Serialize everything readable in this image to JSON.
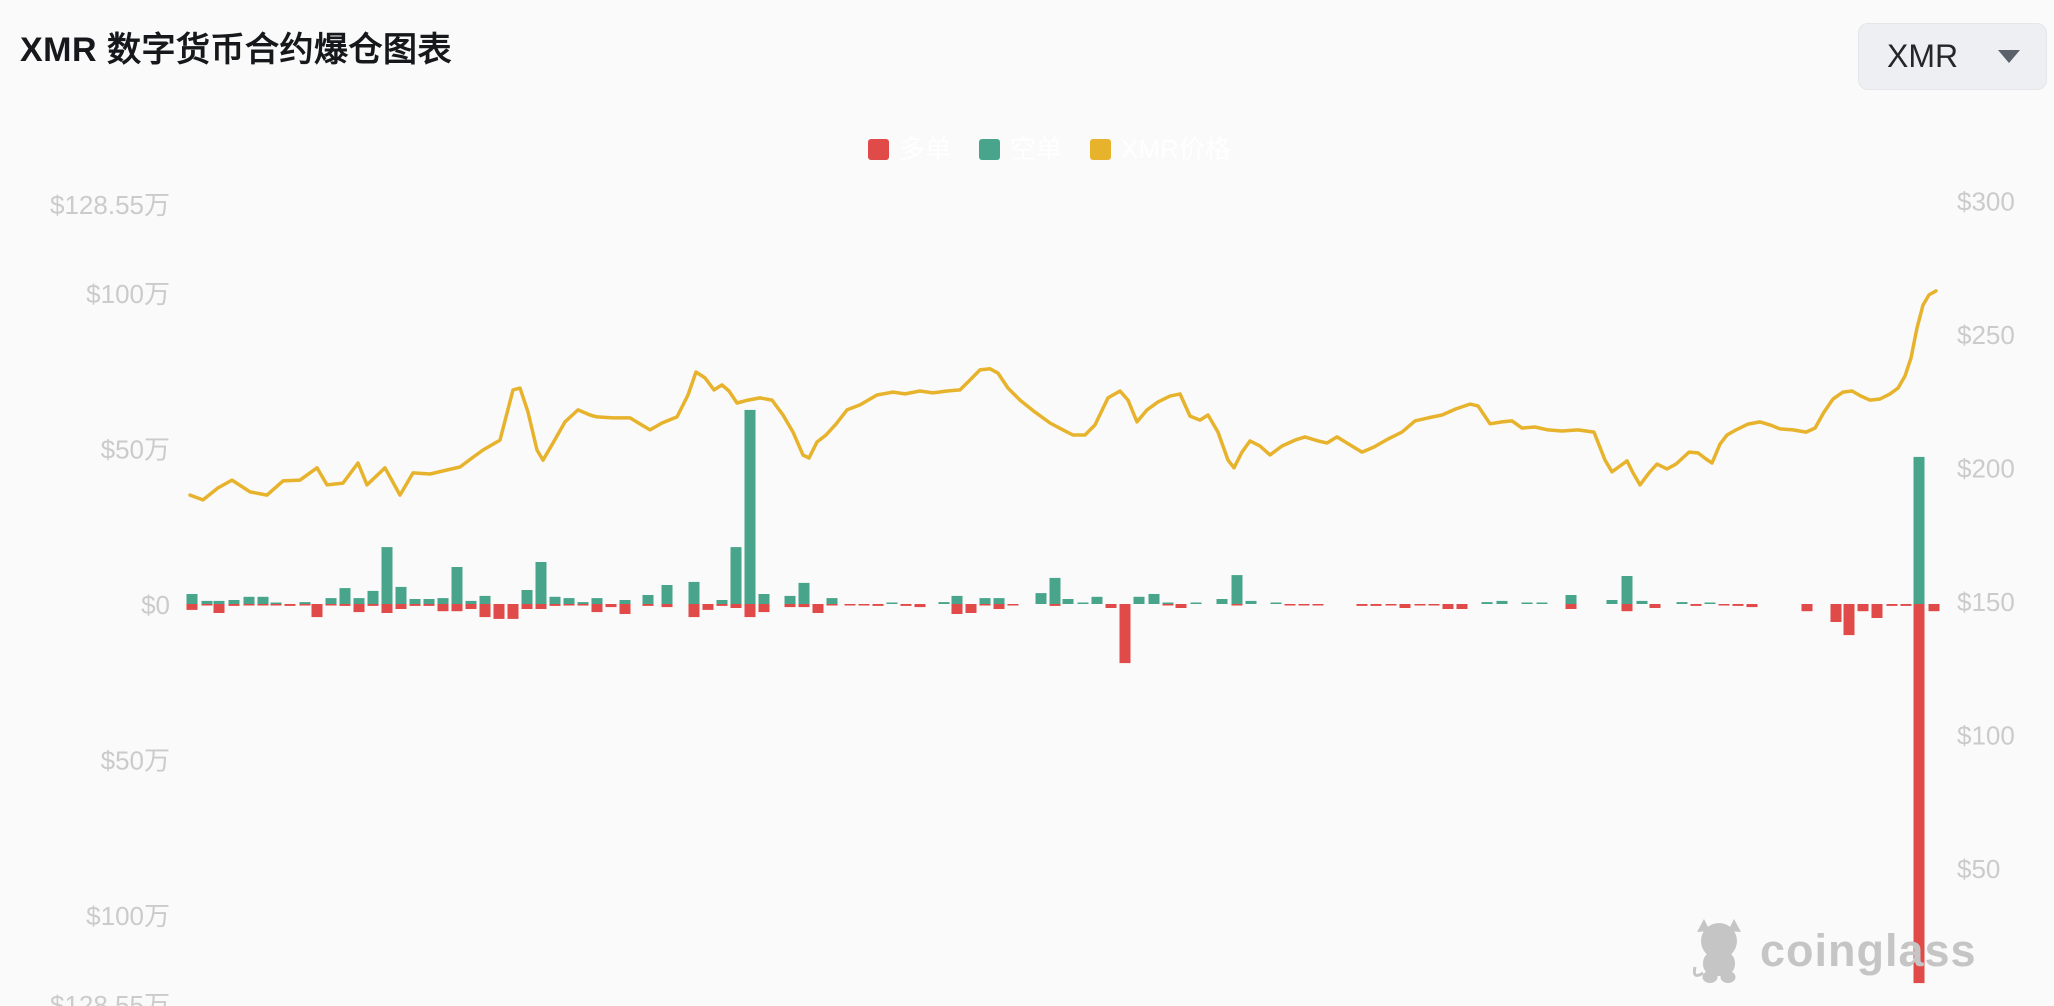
{
  "header": {
    "title": "XMR 数字货币合约爆仓图表",
    "coin_selector": {
      "value": "XMR"
    }
  },
  "legend": {
    "items": [
      {
        "label": "多单",
        "color": "#e04a48",
        "text_color": "#ffffff"
      },
      {
        "label": "空单",
        "color": "#48a58c",
        "text_color": "#ffffff"
      },
      {
        "label": "XMR价格",
        "color": "#e8b32c",
        "text_color": "#ffffff"
      }
    ]
  },
  "watermark": {
    "text": "coinglass"
  },
  "colors": {
    "background": "#fafafa",
    "long_bar": "#e04a48",
    "short_bar": "#48a58c",
    "price_line": "#e8b32c",
    "axis_label": "#cbcbcb",
    "title": "#17181b"
  },
  "chart_data": {
    "type": "bar-line-combo",
    "title": "XMR 数字货币合约爆仓图表",
    "legend_position": "top-center",
    "grid": false,
    "series_meta": [
      {
        "name": "多单",
        "type": "bar",
        "side": "below-zero",
        "unit": "万 USD",
        "color": "#e04a48"
      },
      {
        "name": "空单",
        "type": "bar",
        "side": "above-zero",
        "unit": "万 USD",
        "color": "#48a58c"
      },
      {
        "name": "XMR价格",
        "type": "line",
        "axis": "right",
        "unit": "USD",
        "color": "#e8b32c"
      }
    ],
    "left_axis": {
      "unit": "万 (10k USD)",
      "range_wan": [
        -128.55,
        128.55
      ],
      "ticks": [
        {
          "label": "$128.55万",
          "value": 128.55
        },
        {
          "label": "$100万",
          "value": 100
        },
        {
          "label": "$50万",
          "value": 50
        },
        {
          "label": "$0",
          "value": 0
        },
        {
          "label": "$50万",
          "value": -50
        },
        {
          "label": "$100万",
          "value": -100
        },
        {
          "label": "$128.55万",
          "value": -128.55
        }
      ]
    },
    "right_axis": {
      "unit": "USD",
      "range": [
        50,
        300
      ],
      "ticks": [
        {
          "label": "$300",
          "value": 300
        },
        {
          "label": "$250",
          "value": 250
        },
        {
          "label": "$200",
          "value": 200
        },
        {
          "label": "$150",
          "value": 150
        },
        {
          "label": "$100",
          "value": 100
        },
        {
          "label": "$50",
          "value": 50
        }
      ]
    },
    "bars_note": "each item = [x_px, long_liquidation_wan(red,below), short_liquidation_wan(green,above)]",
    "bars": [
      [
        192,
        1.9,
        3.2
      ],
      [
        207,
        0.3,
        1.0
      ],
      [
        219,
        2.9,
        1.0
      ],
      [
        234,
        0.6,
        1.3
      ],
      [
        249,
        0.3,
        2.3
      ],
      [
        263,
        0.3,
        2.3
      ],
      [
        276,
        0.3,
        0.3
      ],
      [
        290,
        0.6,
        0
      ],
      [
        305,
        0.3,
        0.6
      ],
      [
        317,
        4.2,
        0
      ],
      [
        331,
        0.3,
        1.9
      ],
      [
        345,
        0.6,
        5.1
      ],
      [
        359,
        2.6,
        1.9
      ],
      [
        373,
        0.6,
        4.2
      ],
      [
        387,
        2.9,
        18.3
      ],
      [
        401,
        1.6,
        5.5
      ],
      [
        415,
        0.6,
        1.6
      ],
      [
        429,
        0.6,
        1.6
      ],
      [
        443,
        2.3,
        1.9
      ],
      [
        457,
        2.3,
        11.9
      ],
      [
        471,
        1.6,
        1.0
      ],
      [
        485,
        4.2,
        2.6
      ],
      [
        499,
        4.8,
        0
      ],
      [
        513,
        4.8,
        0
      ],
      [
        527,
        1.6,
        4.5
      ],
      [
        541,
        1.6,
        13.5
      ],
      [
        555,
        0.6,
        2.3
      ],
      [
        569,
        0.3,
        1.9
      ],
      [
        583,
        0.3,
        0.6
      ],
      [
        597,
        2.6,
        1.9
      ],
      [
        611,
        1.0,
        0
      ],
      [
        625,
        3.2,
        1.3
      ],
      [
        648,
        0.6,
        2.9
      ],
      [
        667,
        1.0,
        6.1
      ],
      [
        694,
        4.2,
        7.1
      ],
      [
        708,
        1.9,
        0
      ],
      [
        722,
        0.6,
        1.3
      ],
      [
        736,
        1.3,
        18.3
      ],
      [
        750,
        4.2,
        62.4
      ],
      [
        764,
        2.6,
        3.2
      ],
      [
        790,
        1.0,
        2.6
      ],
      [
        804,
        1.0,
        6.8
      ],
      [
        818,
        2.9,
        0
      ],
      [
        832,
        0.3,
        1.9
      ],
      [
        850,
        0.3,
        0
      ],
      [
        864,
        0.3,
        0
      ],
      [
        878,
        0.6,
        0
      ],
      [
        892,
        0,
        0.3
      ],
      [
        906,
        0.6,
        0
      ],
      [
        920,
        1.0,
        0
      ],
      [
        944,
        0,
        0.6
      ],
      [
        957,
        3.2,
        2.6
      ],
      [
        971,
        2.9,
        0
      ],
      [
        985,
        0.3,
        1.9
      ],
      [
        999,
        1.6,
        1.9
      ],
      [
        1013,
        0.3,
        0
      ],
      [
        1041,
        0,
        3.5
      ],
      [
        1055,
        0.6,
        8.4
      ],
      [
        1068,
        0,
        1.6
      ],
      [
        1083,
        0,
        0.3
      ],
      [
        1097,
        0,
        2.3
      ],
      [
        1111,
        1.3,
        0
      ],
      [
        1125,
        19.0,
        0
      ],
      [
        1139,
        0,
        2.3
      ],
      [
        1154,
        0,
        3.2
      ],
      [
        1168,
        0.3,
        0.3
      ],
      [
        1181,
        1.3,
        0
      ],
      [
        1196,
        0,
        0.3
      ],
      [
        1222,
        0,
        1.6
      ],
      [
        1237,
        0.3,
        9.3
      ],
      [
        1251,
        0,
        1.0
      ],
      [
        1276,
        0,
        0.3
      ],
      [
        1290,
        0.3,
        0
      ],
      [
        1304,
        0.3,
        0
      ],
      [
        1318,
        0.3,
        0
      ],
      [
        1362,
        0.6,
        0
      ],
      [
        1376,
        0.6,
        0
      ],
      [
        1391,
        0.3,
        0
      ],
      [
        1405,
        1.3,
        0
      ],
      [
        1420,
        0.3,
        0
      ],
      [
        1434,
        0.3,
        0
      ],
      [
        1448,
        1.6,
        0
      ],
      [
        1462,
        1.6,
        0
      ],
      [
        1487,
        0,
        0.6
      ],
      [
        1502,
        0,
        1.0
      ],
      [
        1527,
        0,
        0.3
      ],
      [
        1542,
        0,
        0.3
      ],
      [
        1571,
        1.6,
        2.9
      ],
      [
        1612,
        0,
        1.3
      ],
      [
        1627,
        2.3,
        9.0
      ],
      [
        1642,
        0,
        1.0
      ],
      [
        1655,
        1.3,
        0
      ],
      [
        1682,
        0,
        0.6
      ],
      [
        1696,
        0.6,
        0
      ],
      [
        1710,
        0,
        0.3
      ],
      [
        1724,
        0.3,
        0
      ],
      [
        1738,
        0.6,
        0
      ],
      [
        1752,
        1.0,
        0
      ],
      [
        1807,
        2.3,
        0
      ],
      [
        1836,
        5.8,
        0
      ],
      [
        1849,
        10.0,
        0
      ],
      [
        1863,
        2.3,
        0
      ],
      [
        1877,
        4.5,
        0
      ],
      [
        1892,
        0.6,
        0
      ],
      [
        1906,
        0.6,
        0
      ],
      [
        1919,
        121.9,
        47.3
      ],
      [
        1934,
        2.3,
        0
      ]
    ],
    "price_line_note": "each item = [x_px, price_usd]",
    "price_line": [
      [
        190,
        189.7
      ],
      [
        203,
        187.9
      ],
      [
        218,
        192.4
      ],
      [
        232,
        195.3
      ],
      [
        250,
        190.9
      ],
      [
        267,
        189.7
      ],
      [
        283,
        195.0
      ],
      [
        300,
        195.3
      ],
      [
        317,
        199.9
      ],
      [
        327,
        193.5
      ],
      [
        343,
        194.2
      ],
      [
        358,
        201.7
      ],
      [
        367,
        193.5
      ],
      [
        385,
        199.9
      ],
      [
        400,
        189.7
      ],
      [
        413,
        198.0
      ],
      [
        430,
        197.6
      ],
      [
        447,
        199.1
      ],
      [
        460,
        200.2
      ],
      [
        472,
        203.6
      ],
      [
        483,
        206.6
      ],
      [
        500,
        210.3
      ],
      [
        513,
        229.1
      ],
      [
        520,
        229.8
      ],
      [
        528,
        220.8
      ],
      [
        537,
        206.6
      ],
      [
        543,
        202.8
      ],
      [
        553,
        209.2
      ],
      [
        565,
        217.1
      ],
      [
        578,
        221.6
      ],
      [
        590,
        219.7
      ],
      [
        597,
        219.0
      ],
      [
        613,
        218.6
      ],
      [
        630,
        218.6
      ],
      [
        650,
        214.1
      ],
      [
        662,
        216.7
      ],
      [
        677,
        219.0
      ],
      [
        688,
        227.2
      ],
      [
        696,
        235.8
      ],
      [
        705,
        233.6
      ],
      [
        714,
        229.1
      ],
      [
        722,
        231.0
      ],
      [
        729,
        228.7
      ],
      [
        737,
        224.2
      ],
      [
        748,
        225.3
      ],
      [
        760,
        226.1
      ],
      [
        772,
        225.3
      ],
      [
        783,
        219.7
      ],
      [
        793,
        213.3
      ],
      [
        803,
        204.7
      ],
      [
        809,
        203.6
      ],
      [
        817,
        209.6
      ],
      [
        826,
        212.2
      ],
      [
        836,
        216.3
      ],
      [
        847,
        221.6
      ],
      [
        860,
        223.5
      ],
      [
        877,
        227.2
      ],
      [
        893,
        228.3
      ],
      [
        905,
        227.6
      ],
      [
        920,
        228.7
      ],
      [
        933,
        228.0
      ],
      [
        947,
        228.7
      ],
      [
        960,
        229.1
      ],
      [
        970,
        232.8
      ],
      [
        980,
        236.6
      ],
      [
        990,
        237.0
      ],
      [
        998,
        235.4
      ],
      [
        1008,
        229.8
      ],
      [
        1020,
        225.3
      ],
      [
        1035,
        220.8
      ],
      [
        1050,
        216.7
      ],
      [
        1063,
        214.1
      ],
      [
        1073,
        212.2
      ],
      [
        1085,
        212.2
      ],
      [
        1095,
        216.0
      ],
      [
        1108,
        226.1
      ],
      [
        1120,
        228.7
      ],
      [
        1128,
        225.3
      ],
      [
        1137,
        217.1
      ],
      [
        1147,
        221.6
      ],
      [
        1158,
        224.6
      ],
      [
        1170,
        226.8
      ],
      [
        1180,
        227.6
      ],
      [
        1190,
        219.3
      ],
      [
        1200,
        217.8
      ],
      [
        1208,
        219.7
      ],
      [
        1218,
        213.3
      ],
      [
        1228,
        202.8
      ],
      [
        1234,
        199.9
      ],
      [
        1242,
        205.8
      ],
      [
        1250,
        210.0
      ],
      [
        1260,
        208.1
      ],
      [
        1270,
        204.7
      ],
      [
        1282,
        208.1
      ],
      [
        1295,
        210.3
      ],
      [
        1305,
        211.5
      ],
      [
        1318,
        210.0
      ],
      [
        1327,
        209.2
      ],
      [
        1337,
        211.5
      ],
      [
        1350,
        208.5
      ],
      [
        1362,
        205.8
      ],
      [
        1374,
        207.7
      ],
      [
        1388,
        210.7
      ],
      [
        1402,
        213.3
      ],
      [
        1415,
        217.5
      ],
      [
        1428,
        218.6
      ],
      [
        1442,
        219.7
      ],
      [
        1456,
        222.0
      ],
      [
        1470,
        223.8
      ],
      [
        1478,
        223.1
      ],
      [
        1490,
        216.4
      ],
      [
        1502,
        217.1
      ],
      [
        1512,
        217.5
      ],
      [
        1522,
        214.8
      ],
      [
        1535,
        215.2
      ],
      [
        1548,
        214.1
      ],
      [
        1562,
        213.7
      ],
      [
        1578,
        214.1
      ],
      [
        1594,
        213.3
      ],
      [
        1605,
        202.8
      ],
      [
        1612,
        198.4
      ],
      [
        1620,
        200.6
      ],
      [
        1627,
        202.5
      ],
      [
        1633,
        198.0
      ],
      [
        1640,
        193.5
      ],
      [
        1649,
        198.0
      ],
      [
        1657,
        201.3
      ],
      [
        1667,
        199.5
      ],
      [
        1676,
        201.3
      ],
      [
        1689,
        205.8
      ],
      [
        1698,
        205.5
      ],
      [
        1706,
        203.2
      ],
      [
        1712,
        201.7
      ],
      [
        1720,
        208.8
      ],
      [
        1727,
        212.2
      ],
      [
        1736,
        214.1
      ],
      [
        1748,
        216.3
      ],
      [
        1760,
        217.1
      ],
      [
        1770,
        216.0
      ],
      [
        1780,
        214.5
      ],
      [
        1793,
        214.1
      ],
      [
        1806,
        213.3
      ],
      [
        1815,
        214.8
      ],
      [
        1824,
        220.8
      ],
      [
        1833,
        225.7
      ],
      [
        1843,
        228.3
      ],
      [
        1852,
        228.7
      ],
      [
        1861,
        226.8
      ],
      [
        1870,
        225.3
      ],
      [
        1880,
        225.7
      ],
      [
        1890,
        227.6
      ],
      [
        1898,
        229.8
      ],
      [
        1905,
        234.3
      ],
      [
        1911,
        241.1
      ],
      [
        1917,
        252.3
      ],
      [
        1923,
        260.9
      ],
      [
        1929,
        264.7
      ],
      [
        1936,
        266.2
      ]
    ]
  }
}
